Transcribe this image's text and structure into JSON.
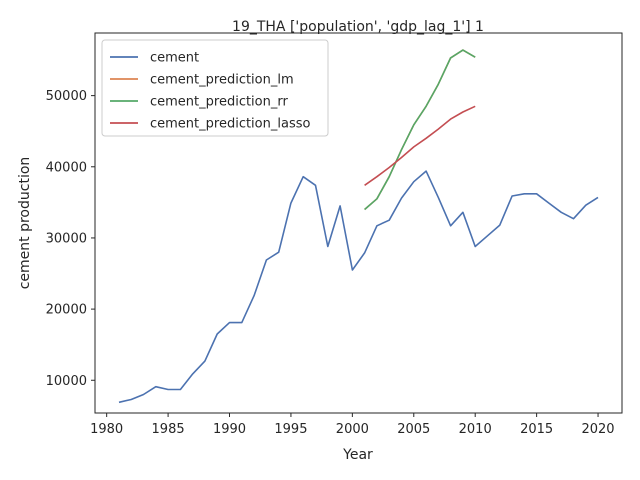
{
  "chart_data": {
    "type": "line",
    "title": "19_THA ['population', 'gdp_lag_1'] 1",
    "xlabel": "Year",
    "ylabel": "cement production",
    "xlim": [
      1979.05,
      2021.95
    ],
    "ylim": [
      5400,
      58800
    ],
    "x_ticks": [
      1980,
      1985,
      1990,
      1995,
      2000,
      2005,
      2010,
      2015,
      2020
    ],
    "y_ticks": [
      10000,
      20000,
      30000,
      40000,
      50000
    ],
    "grid": false,
    "legend_position": "top-left",
    "series": [
      {
        "name": "cement",
        "color": "#4c72b0",
        "x": [
          1981,
          1982,
          1983,
          1984,
          1985,
          1986,
          1987,
          1988,
          1989,
          1990,
          1991,
          1992,
          1993,
          1994,
          1995,
          1996,
          1997,
          1998,
          1999,
          2000,
          2001,
          2002,
          2003,
          2004,
          2005,
          2006,
          2007,
          2008,
          2009,
          2010,
          2011,
          2012,
          2013,
          2014,
          2015,
          2016,
          2017,
          2018,
          2019,
          2020
        ],
        "y": [
          6900,
          7300,
          8000,
          9100,
          8700,
          8700,
          10900,
          12700,
          16500,
          18100,
          18100,
          21900,
          26900,
          28000,
          34900,
          38600,
          37400,
          28800,
          34500,
          25500,
          27900,
          31700,
          32500,
          35600,
          37900,
          39400,
          35700,
          31700,
          33600,
          28800,
          30300,
          31800,
          35900,
          36200,
          36200,
          34900,
          33600,
          32700,
          34600,
          35700
        ]
      },
      {
        "name": "cement_prediction_lm",
        "color": "#dd8452",
        "x": [
          2001,
          2002,
          2003,
          2004,
          2005,
          2006,
          2007,
          2008,
          2009,
          2010
        ],
        "y": [
          34000,
          35500,
          38600,
          42400,
          45900,
          48500,
          51600,
          55300,
          56400,
          55400
        ]
      },
      {
        "name": "cement_prediction_rr",
        "color": "#55a868",
        "x": [
          2001,
          2002,
          2003,
          2004,
          2005,
          2006,
          2007,
          2008,
          2009,
          2010
        ],
        "y": [
          34000,
          35500,
          38600,
          42400,
          45900,
          48500,
          51600,
          55300,
          56400,
          55400
        ]
      },
      {
        "name": "cement_prediction_lasso",
        "color": "#c44e52",
        "x": [
          2001,
          2002,
          2003,
          2004,
          2005,
          2006,
          2007,
          2008,
          2009,
          2010
        ],
        "y": [
          37400,
          38600,
          39900,
          41300,
          42800,
          44000,
          45300,
          46700,
          47700,
          48500
        ]
      }
    ]
  }
}
